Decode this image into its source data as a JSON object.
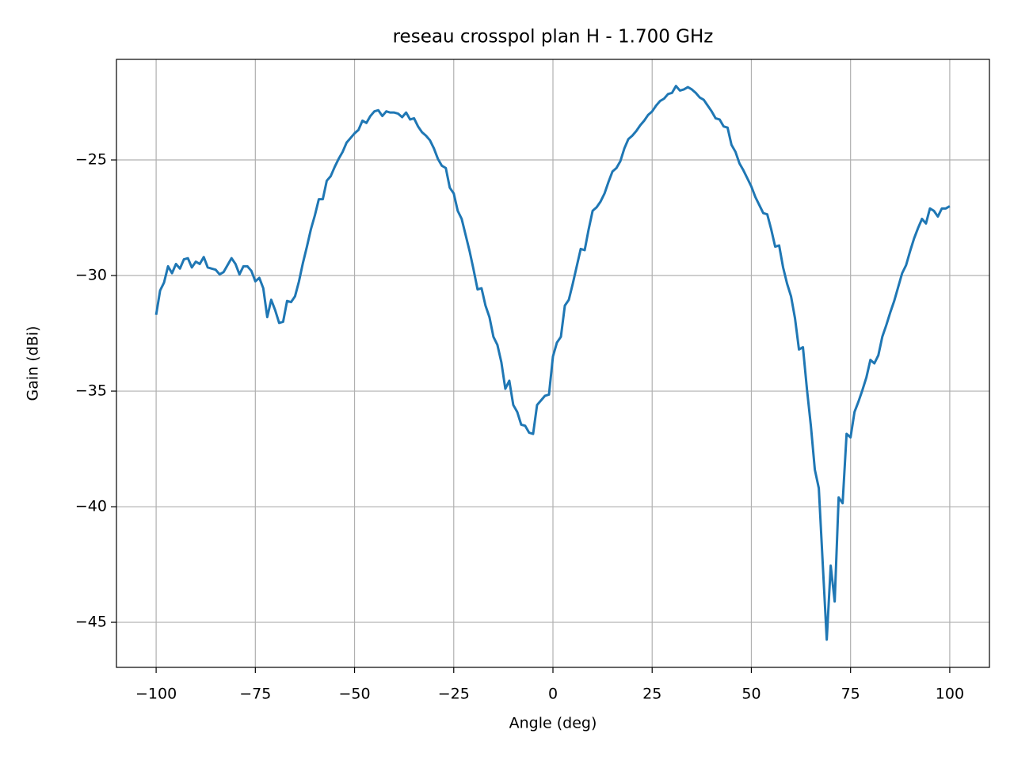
{
  "chart_data": {
    "type": "line",
    "title": "reseau crosspol plan H - 1.700 GHz",
    "x_label": "Angle (deg)",
    "y_label": "Gain (dBi)",
    "x": [
      -100,
      -99,
      -98,
      -97,
      -96,
      -95,
      -94,
      -93,
      -92,
      -91,
      -90,
      -89,
      -88,
      -87,
      -86,
      -85,
      -84,
      -83,
      -82,
      -81,
      -80,
      -79,
      -78,
      -77,
      -76,
      -75,
      -74,
      -73,
      -72,
      -71,
      -70,
      -69,
      -68,
      -67,
      -66,
      -65,
      -64,
      -63,
      -62,
      -61,
      -60,
      -59,
      -58,
      -57,
      -56,
      -55,
      -54,
      -53,
      -52,
      -51,
      -50,
      -49,
      -48,
      -47,
      -46,
      -45,
      -44,
      -43,
      -42,
      -41,
      -40,
      -39,
      -38,
      -37,
      -36,
      -35,
      -34,
      -33,
      -32,
      -31,
      -30,
      -29,
      -28,
      -27,
      -26,
      -25,
      -24,
      -23,
      -22,
      -21,
      -20,
      -19,
      -18,
      -17,
      -16,
      -15,
      -14,
      -13,
      -12,
      -11,
      -10,
      -9,
      -8,
      -7,
      -6,
      -5,
      -4,
      -3,
      -2,
      -1,
      0,
      1,
      2,
      3,
      4,
      5,
      6,
      7,
      8,
      9,
      10,
      11,
      12,
      13,
      14,
      15,
      16,
      17,
      18,
      19,
      20,
      21,
      22,
      23,
      24,
      25,
      26,
      27,
      28,
      29,
      30,
      31,
      32,
      33,
      34,
      35,
      36,
      37,
      38,
      39,
      40,
      41,
      42,
      43,
      44,
      45,
      46,
      47,
      48,
      49,
      50,
      51,
      52,
      53,
      54,
      55,
      56,
      57,
      58,
      59,
      60,
      61,
      62,
      63,
      64,
      65,
      66,
      67,
      68,
      69,
      70,
      71,
      72,
      73,
      74,
      75,
      76,
      77,
      78,
      79,
      80,
      81,
      82,
      83,
      84,
      85,
      86,
      87,
      88,
      89,
      90,
      91,
      92,
      93,
      94,
      95,
      96,
      97,
      98,
      99,
      100
    ],
    "series": [
      {
        "color": "#1f77b4",
        "values": [
          -31.7,
          -30.65,
          -30.3,
          -29.6,
          -29.9,
          -29.5,
          -29.7,
          -29.3,
          -29.25,
          -29.65,
          -29.4,
          -29.5,
          -29.2,
          -29.65,
          -29.7,
          -29.75,
          -29.95,
          -29.85,
          -29.55,
          -29.25,
          -29.5,
          -29.95,
          -29.6,
          -29.6,
          -29.8,
          -30.25,
          -30.1,
          -30.55,
          -31.8,
          -31.05,
          -31.5,
          -32.05,
          -32.0,
          -31.1,
          -31.15,
          -30.9,
          -30.25,
          -29.45,
          -28.75,
          -28.0,
          -27.4,
          -26.7,
          -26.7,
          -25.9,
          -25.7,
          -25.3,
          -24.95,
          -24.65,
          -24.25,
          -24.05,
          -23.85,
          -23.7,
          -23.3,
          -23.4,
          -23.1,
          -22.9,
          -22.85,
          -23.1,
          -22.9,
          -22.95,
          -22.95,
          -23.0,
          -23.15,
          -22.95,
          -23.25,
          -23.2,
          -23.55,
          -23.8,
          -23.95,
          -24.15,
          -24.5,
          -24.95,
          -25.25,
          -25.35,
          -26.2,
          -26.45,
          -27.2,
          -27.55,
          -28.25,
          -28.95,
          -29.75,
          -30.6,
          -30.55,
          -31.3,
          -31.8,
          -32.65,
          -33.0,
          -33.75,
          -34.9,
          -34.55,
          -35.6,
          -35.9,
          -36.45,
          -36.5,
          -36.8,
          -36.85,
          -35.6,
          -35.4,
          -35.2,
          -35.15,
          -33.5,
          -32.9,
          -32.65,
          -31.3,
          -31.05,
          -30.35,
          -29.6,
          -28.85,
          -28.9,
          -28.0,
          -27.2,
          -27.05,
          -26.8,
          -26.45,
          -25.95,
          -25.5,
          -25.35,
          -25.05,
          -24.5,
          -24.1,
          -23.95,
          -23.75,
          -23.5,
          -23.3,
          -23.05,
          -22.9,
          -22.65,
          -22.45,
          -22.35,
          -22.15,
          -22.1,
          -21.8,
          -22.0,
          -21.95,
          -21.85,
          -21.95,
          -22.1,
          -22.3,
          -22.4,
          -22.65,
          -22.9,
          -23.2,
          -23.25,
          -23.55,
          -23.6,
          -24.35,
          -24.65,
          -25.15,
          -25.45,
          -25.8,
          -26.15,
          -26.6,
          -26.95,
          -27.3,
          -27.35,
          -28.0,
          -28.75,
          -28.7,
          -29.65,
          -30.35,
          -30.9,
          -31.85,
          -33.2,
          -33.1,
          -34.9,
          -36.5,
          -38.4,
          -39.2,
          -42.5,
          -45.75,
          -42.55,
          -44.1,
          -39.6,
          -39.85,
          -36.85,
          -37.0,
          -35.9,
          -35.45,
          -34.95,
          -34.4,
          -33.65,
          -33.8,
          -33.45,
          -32.65,
          -32.15,
          -31.6,
          -31.1,
          -30.5,
          -29.9,
          -29.55,
          -28.95,
          -28.4,
          -27.95,
          -27.55,
          -27.75,
          -27.1,
          -27.2,
          -27.45,
          -27.1,
          -27.1,
          -27.0
        ]
      }
    ],
    "xlim": [
      -110,
      110
    ],
    "xticks": [
      {
        "value": -100,
        "label": "−100"
      },
      {
        "value": -75,
        "label": "−75"
      },
      {
        "value": -50,
        "label": "−50"
      },
      {
        "value": -25,
        "label": "−25"
      },
      0,
      25,
      50,
      75,
      100
    ],
    "ylim": [
      -46.95,
      -20.65
    ],
    "yticks": [
      {
        "value": -45,
        "label": "−45"
      },
      {
        "value": -40,
        "label": "−40"
      },
      {
        "value": -35,
        "label": "−35"
      },
      {
        "value": -30,
        "label": "−30"
      },
      {
        "value": -25,
        "label": "−25"
      }
    ],
    "grid": true
  }
}
